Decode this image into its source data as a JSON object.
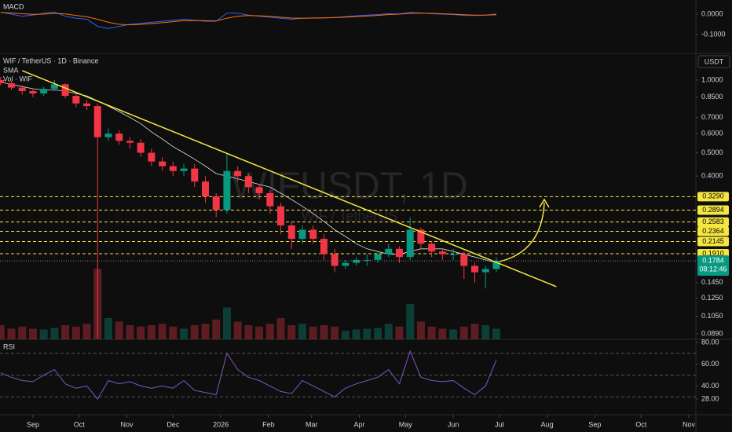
{
  "header": {
    "symbol": "WIF / TetherUS · 1D · Binance",
    "currency": "USDT",
    "watermark": "WIFUSDT, 1D",
    "watermark_sub": "WIF / TetherUS"
  },
  "chart_data": {
    "type": "candlestick",
    "indicators": [
      "SMA",
      "Vol · WIF"
    ],
    "x": [
      -21,
      -14,
      -7,
      0,
      7,
      14,
      21,
      28,
      35,
      42,
      49,
      56,
      63,
      70,
      77,
      84,
      91,
      98,
      105,
      112,
      119,
      126,
      133,
      140,
      147,
      154,
      161,
      168,
      175,
      182,
      189,
      196,
      203,
      210,
      217,
      224,
      231,
      238,
      245,
      252,
      259,
      266,
      273,
      280,
      287,
      294,
      301
    ],
    "open": [
      1.0,
      0.97,
      0.93,
      0.9,
      0.88,
      0.92,
      0.96,
      0.86,
      0.8,
      0.78,
      0.58,
      0.6,
      0.56,
      0.55,
      0.5,
      0.46,
      0.44,
      0.42,
      0.43,
      0.38,
      0.33,
      0.29,
      0.42,
      0.4,
      0.36,
      0.34,
      0.3,
      0.25,
      0.22,
      0.24,
      0.22,
      0.19,
      0.17,
      0.175,
      0.18,
      0.18,
      0.19,
      0.2,
      0.185,
      0.24,
      0.21,
      0.195,
      0.19,
      0.19,
      0.17,
      0.16,
      0.165
    ],
    "high": [
      1.03,
      0.99,
      0.95,
      0.92,
      0.94,
      1.0,
      0.97,
      0.88,
      0.83,
      0.8,
      0.63,
      0.62,
      0.58,
      0.57,
      0.52,
      0.48,
      0.46,
      0.45,
      0.45,
      0.4,
      0.34,
      0.5,
      0.44,
      0.41,
      0.37,
      0.35,
      0.31,
      0.26,
      0.25,
      0.25,
      0.23,
      0.2,
      0.18,
      0.185,
      0.19,
      0.195,
      0.21,
      0.205,
      0.27,
      0.245,
      0.215,
      0.2,
      0.2,
      0.195,
      0.175,
      0.17,
      0.185
    ],
    "low": [
      0.95,
      0.91,
      0.87,
      0.85,
      0.86,
      0.9,
      0.84,
      0.77,
      0.75,
      0.085,
      0.56,
      0.54,
      0.52,
      0.48,
      0.44,
      0.42,
      0.4,
      0.4,
      0.36,
      0.31,
      0.27,
      0.28,
      0.38,
      0.34,
      0.32,
      0.28,
      0.23,
      0.2,
      0.21,
      0.21,
      0.18,
      0.16,
      0.165,
      0.17,
      0.17,
      0.175,
      0.185,
      0.175,
      0.18,
      0.2,
      0.185,
      0.18,
      0.18,
      0.15,
      0.145,
      0.137,
      0.16
    ],
    "close": [
      0.97,
      0.93,
      0.9,
      0.88,
      0.92,
      0.96,
      0.86,
      0.8,
      0.78,
      0.58,
      0.6,
      0.56,
      0.55,
      0.5,
      0.46,
      0.44,
      0.42,
      0.43,
      0.38,
      0.33,
      0.29,
      0.42,
      0.4,
      0.36,
      0.34,
      0.3,
      0.25,
      0.22,
      0.24,
      0.22,
      0.19,
      0.17,
      0.175,
      0.18,
      0.18,
      0.19,
      0.2,
      0.185,
      0.24,
      0.21,
      0.195,
      0.19,
      0.19,
      0.17,
      0.16,
      0.165,
      0.1784
    ],
    "sma": [
      0.98,
      0.96,
      0.94,
      0.92,
      0.91,
      0.91,
      0.9,
      0.88,
      0.86,
      0.82,
      0.78,
      0.74,
      0.7,
      0.66,
      0.61,
      0.57,
      0.53,
      0.5,
      0.47,
      0.44,
      0.41,
      0.4,
      0.39,
      0.38,
      0.37,
      0.36,
      0.34,
      0.32,
      0.3,
      0.28,
      0.26,
      0.24,
      0.225,
      0.21,
      0.2,
      0.195,
      0.19,
      0.19,
      0.195,
      0.2,
      0.2,
      0.2,
      0.195,
      0.19,
      0.185,
      0.18,
      0.175
    ],
    "sma_color": "#e0e0e0",
    "volume": [
      20,
      15,
      18,
      15,
      14,
      16,
      20,
      18,
      22,
      100,
      30,
      25,
      20,
      18,
      20,
      22,
      18,
      15,
      20,
      22,
      28,
      45,
      25,
      20,
      18,
      22,
      30,
      20,
      22,
      18,
      20,
      18,
      12,
      14,
      15,
      16,
      22,
      18,
      50,
      25,
      18,
      15,
      14,
      18,
      22,
      20,
      15
    ],
    "up_color": "#089981",
    "down_color": "#f23645",
    "xlim": [
      -21.4,
      430.6
    ],
    "xticks": [
      {
        "value": 0,
        "label": "Sep"
      },
      {
        "value": 30,
        "label": "Oct"
      },
      {
        "value": 61,
        "label": "Nov"
      },
      {
        "value": 91,
        "label": "Dec"
      },
      {
        "value": 122,
        "label": "2026"
      },
      {
        "value": 153,
        "label": "Feb"
      },
      {
        "value": 181,
        "label": "Mar"
      },
      {
        "value": 212,
        "label": "Apr"
      },
      {
        "value": 242,
        "label": "May"
      },
      {
        "value": 273,
        "label": "Jun"
      },
      {
        "value": 303,
        "label": "Jul"
      },
      {
        "value": 334,
        "label": "Aug"
      },
      {
        "value": 365,
        "label": "Sep"
      },
      {
        "value": 395,
        "label": "Oct"
      },
      {
        "value": 426,
        "label": "Nov"
      }
    ],
    "ylim": [
      0.0844,
      1.27
    ],
    "log": true,
    "yticks": [
      {
        "value": 1,
        "label": "1.0000"
      },
      {
        "value": 0.85,
        "label": "0.8500"
      },
      {
        "value": 0.7,
        "label": "0.7000"
      },
      {
        "value": 0.6,
        "label": "0.6000"
      },
      {
        "value": 0.5,
        "label": "0.5000"
      },
      {
        "value": 0.4,
        "label": "0.4000"
      },
      {
        "value": 0.145,
        "label": "0.1450"
      },
      {
        "value": 0.125,
        "label": "0.1250"
      },
      {
        "value": 0.105,
        "label": "0.1050"
      },
      {
        "value": 0.089,
        "label": "0.0890"
      }
    ],
    "levels": [
      {
        "value": 0.329,
        "label": "0.3290"
      },
      {
        "value": 0.2894,
        "label": "0.2894"
      },
      {
        "value": 0.2583,
        "label": "0.2583"
      },
      {
        "value": 0.2364,
        "label": "0.2364"
      },
      {
        "value": 0.2145,
        "label": "0.2145"
      },
      {
        "value": 0.191,
        "label": "0.1910"
      }
    ],
    "level_color": "#f5e642",
    "last_price": {
      "value": 0.1784,
      "label": "0.1784"
    },
    "countdown": "08:12:46",
    "trendline": {
      "x": [
        -7,
        340
      ],
      "y": [
        1.094,
        0.1395
      ]
    },
    "trendline_color": "#f5e642",
    "macd": {
      "title": "MACD",
      "ylim": [
        -0.192,
        0.0692
      ],
      "yticks": [
        {
          "value": 0,
          "label": "0.0000"
        },
        {
          "value": -0.1,
          "label": "-0.1000"
        }
      ],
      "lines": [
        {
          "color": "#2962ff",
          "values": [
            0.01,
            0,
            -0.01,
            -0.005,
            0.005,
            0.01,
            -0.01,
            -0.02,
            -0.025,
            -0.06,
            -0.07,
            -0.06,
            -0.05,
            -0.045,
            -0.04,
            -0.035,
            -0.03,
            -0.025,
            -0.03,
            -0.035,
            -0.035,
            0.005,
            0.005,
            -0.005,
            -0.01,
            -0.015,
            -0.02,
            -0.025,
            -0.02,
            -0.018,
            -0.018,
            -0.016,
            -0.012,
            -0.008,
            -0.005,
            -0.002,
            0.002,
            0.001,
            0.008,
            0.006,
            0.002,
            0,
            -0.002,
            -0.006,
            -0.007,
            -0.005,
            0.001
          ]
        },
        {
          "color": "#ff6d00",
          "values": [
            0.008,
            0.006,
            0.002,
            -0.001,
            0,
            0.004,
            0.001,
            -0.006,
            -0.013,
            -0.025,
            -0.04,
            -0.05,
            -0.052,
            -0.05,
            -0.046,
            -0.042,
            -0.037,
            -0.032,
            -0.031,
            -0.032,
            -0.033,
            -0.02,
            -0.01,
            -0.007,
            -0.008,
            -0.011,
            -0.015,
            -0.019,
            -0.02,
            -0.019,
            -0.018,
            -0.017,
            -0.015,
            -0.012,
            -0.009,
            -0.006,
            -0.002,
            0,
            0.004,
            0.005,
            0.004,
            0.002,
            0,
            -0.003,
            -0.005,
            -0.005,
            -0.003
          ]
        }
      ]
    },
    "rsi": {
      "title": "RSI",
      "ylim": [
        13.6,
        82.9
      ],
      "color": "#7e57c2",
      "bands": [
        70,
        50,
        30
      ],
      "yticks": [
        {
          "value": 80,
          "label": "80.00"
        },
        {
          "value": 60,
          "label": "60.00"
        },
        {
          "value": 40,
          "label": "40.00"
        },
        {
          "value": 28,
          "label": "28.00"
        }
      ],
      "values": [
        52,
        48,
        45,
        44,
        50,
        55,
        42,
        38,
        40,
        28,
        45,
        42,
        44,
        40,
        38,
        40,
        38,
        45,
        36,
        34,
        32,
        70,
        55,
        48,
        45,
        40,
        35,
        33,
        45,
        40,
        35,
        30,
        38,
        42,
        45,
        48,
        55,
        42,
        72,
        48,
        45,
        44,
        45,
        38,
        32,
        40,
        64
      ]
    }
  }
}
